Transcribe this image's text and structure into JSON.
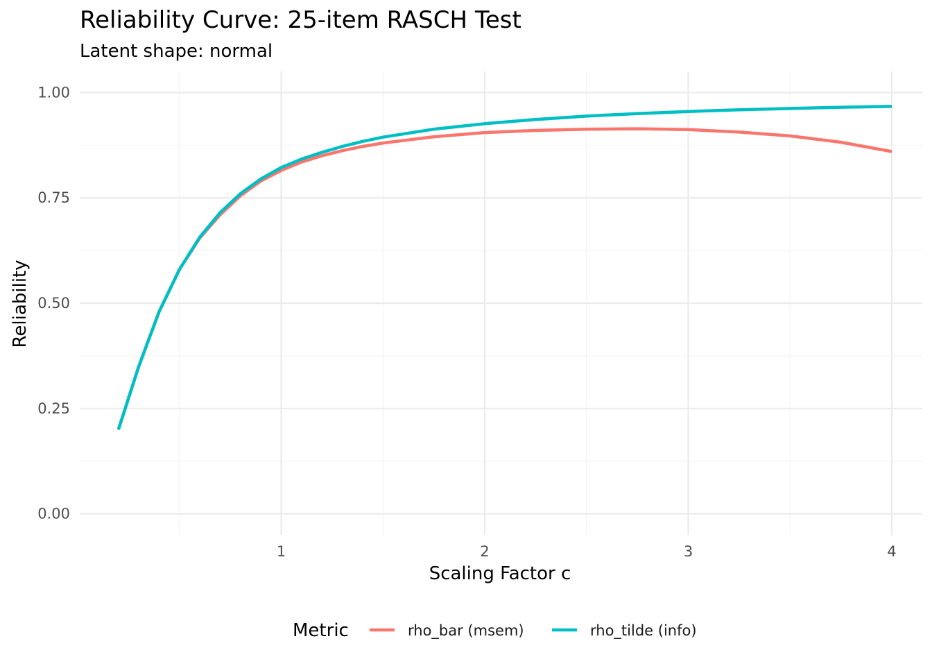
{
  "chart_data": {
    "type": "line",
    "title": "Reliability Curve: 25-item RASCH Test",
    "subtitle": "Latent shape: normal",
    "xlabel": "Scaling Factor c",
    "ylabel": "Reliability",
    "xlim": [
      0.01,
      4.15
    ],
    "ylim": [
      -0.05,
      1.05
    ],
    "x_ticks": [
      1,
      2,
      3,
      4
    ],
    "x_tick_labels": [
      "1",
      "2",
      "3",
      "4"
    ],
    "y_ticks": [
      0,
      0.25,
      0.5,
      0.75,
      1.0
    ],
    "y_tick_labels": [
      "0.00",
      "0.25",
      "0.50",
      "0.75",
      "1.00"
    ],
    "grid": true,
    "legend": {
      "title": "Metric",
      "position": "bottom"
    },
    "series": [
      {
        "name": "rho_bar (msem)",
        "color": "#F8766D",
        "x": [
          0.2,
          0.3,
          0.4,
          0.5,
          0.6,
          0.7,
          0.8,
          0.9,
          1.0,
          1.1,
          1.2,
          1.3,
          1.4,
          1.5,
          1.75,
          2.0,
          2.25,
          2.5,
          2.75,
          3.0,
          3.25,
          3.5,
          3.75,
          4.0
        ],
        "y": [
          0.2,
          0.35,
          0.48,
          0.58,
          0.655,
          0.71,
          0.755,
          0.79,
          0.815,
          0.835,
          0.85,
          0.862,
          0.872,
          0.88,
          0.895,
          0.905,
          0.91,
          0.913,
          0.914,
          0.912,
          0.906,
          0.897,
          0.882,
          0.86
        ]
      },
      {
        "name": "rho_tilde (info)",
        "color": "#00BFC4",
        "x": [
          0.2,
          0.3,
          0.4,
          0.5,
          0.6,
          0.7,
          0.8,
          0.9,
          1.0,
          1.1,
          1.2,
          1.3,
          1.4,
          1.5,
          1.75,
          2.0,
          2.25,
          2.5,
          2.75,
          3.0,
          3.25,
          3.5,
          3.75,
          4.0
        ],
        "y": [
          0.2,
          0.35,
          0.48,
          0.58,
          0.657,
          0.715,
          0.76,
          0.795,
          0.822,
          0.842,
          0.858,
          0.872,
          0.884,
          0.894,
          0.913,
          0.926,
          0.936,
          0.944,
          0.95,
          0.955,
          0.959,
          0.962,
          0.965,
          0.967
        ]
      }
    ]
  }
}
